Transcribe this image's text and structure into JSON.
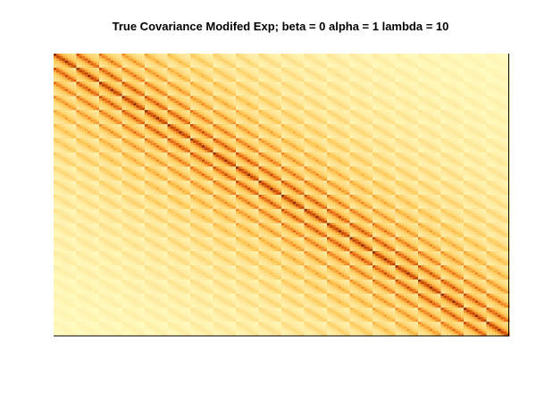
{
  "chart_data": {
    "type": "heatmap",
    "title": "True Covariance Modifed Exp; beta =  0 alpha = 1 lambda = 10",
    "xlabel": "",
    "ylabel": "",
    "n_rows": 20,
    "n_cols": 20,
    "sub_rows": 6,
    "sub_cols": 8,
    "beta": 0,
    "alpha": 1,
    "lambda": 10,
    "colors": {
      "low": "#ffffc8",
      "mid_low": "#fee391",
      "mid": "#fec44f",
      "mid_high": "#f07e22",
      "high": "#cc4c02",
      "max": "#8c2d04"
    },
    "grid": false,
    "axes": "none"
  }
}
